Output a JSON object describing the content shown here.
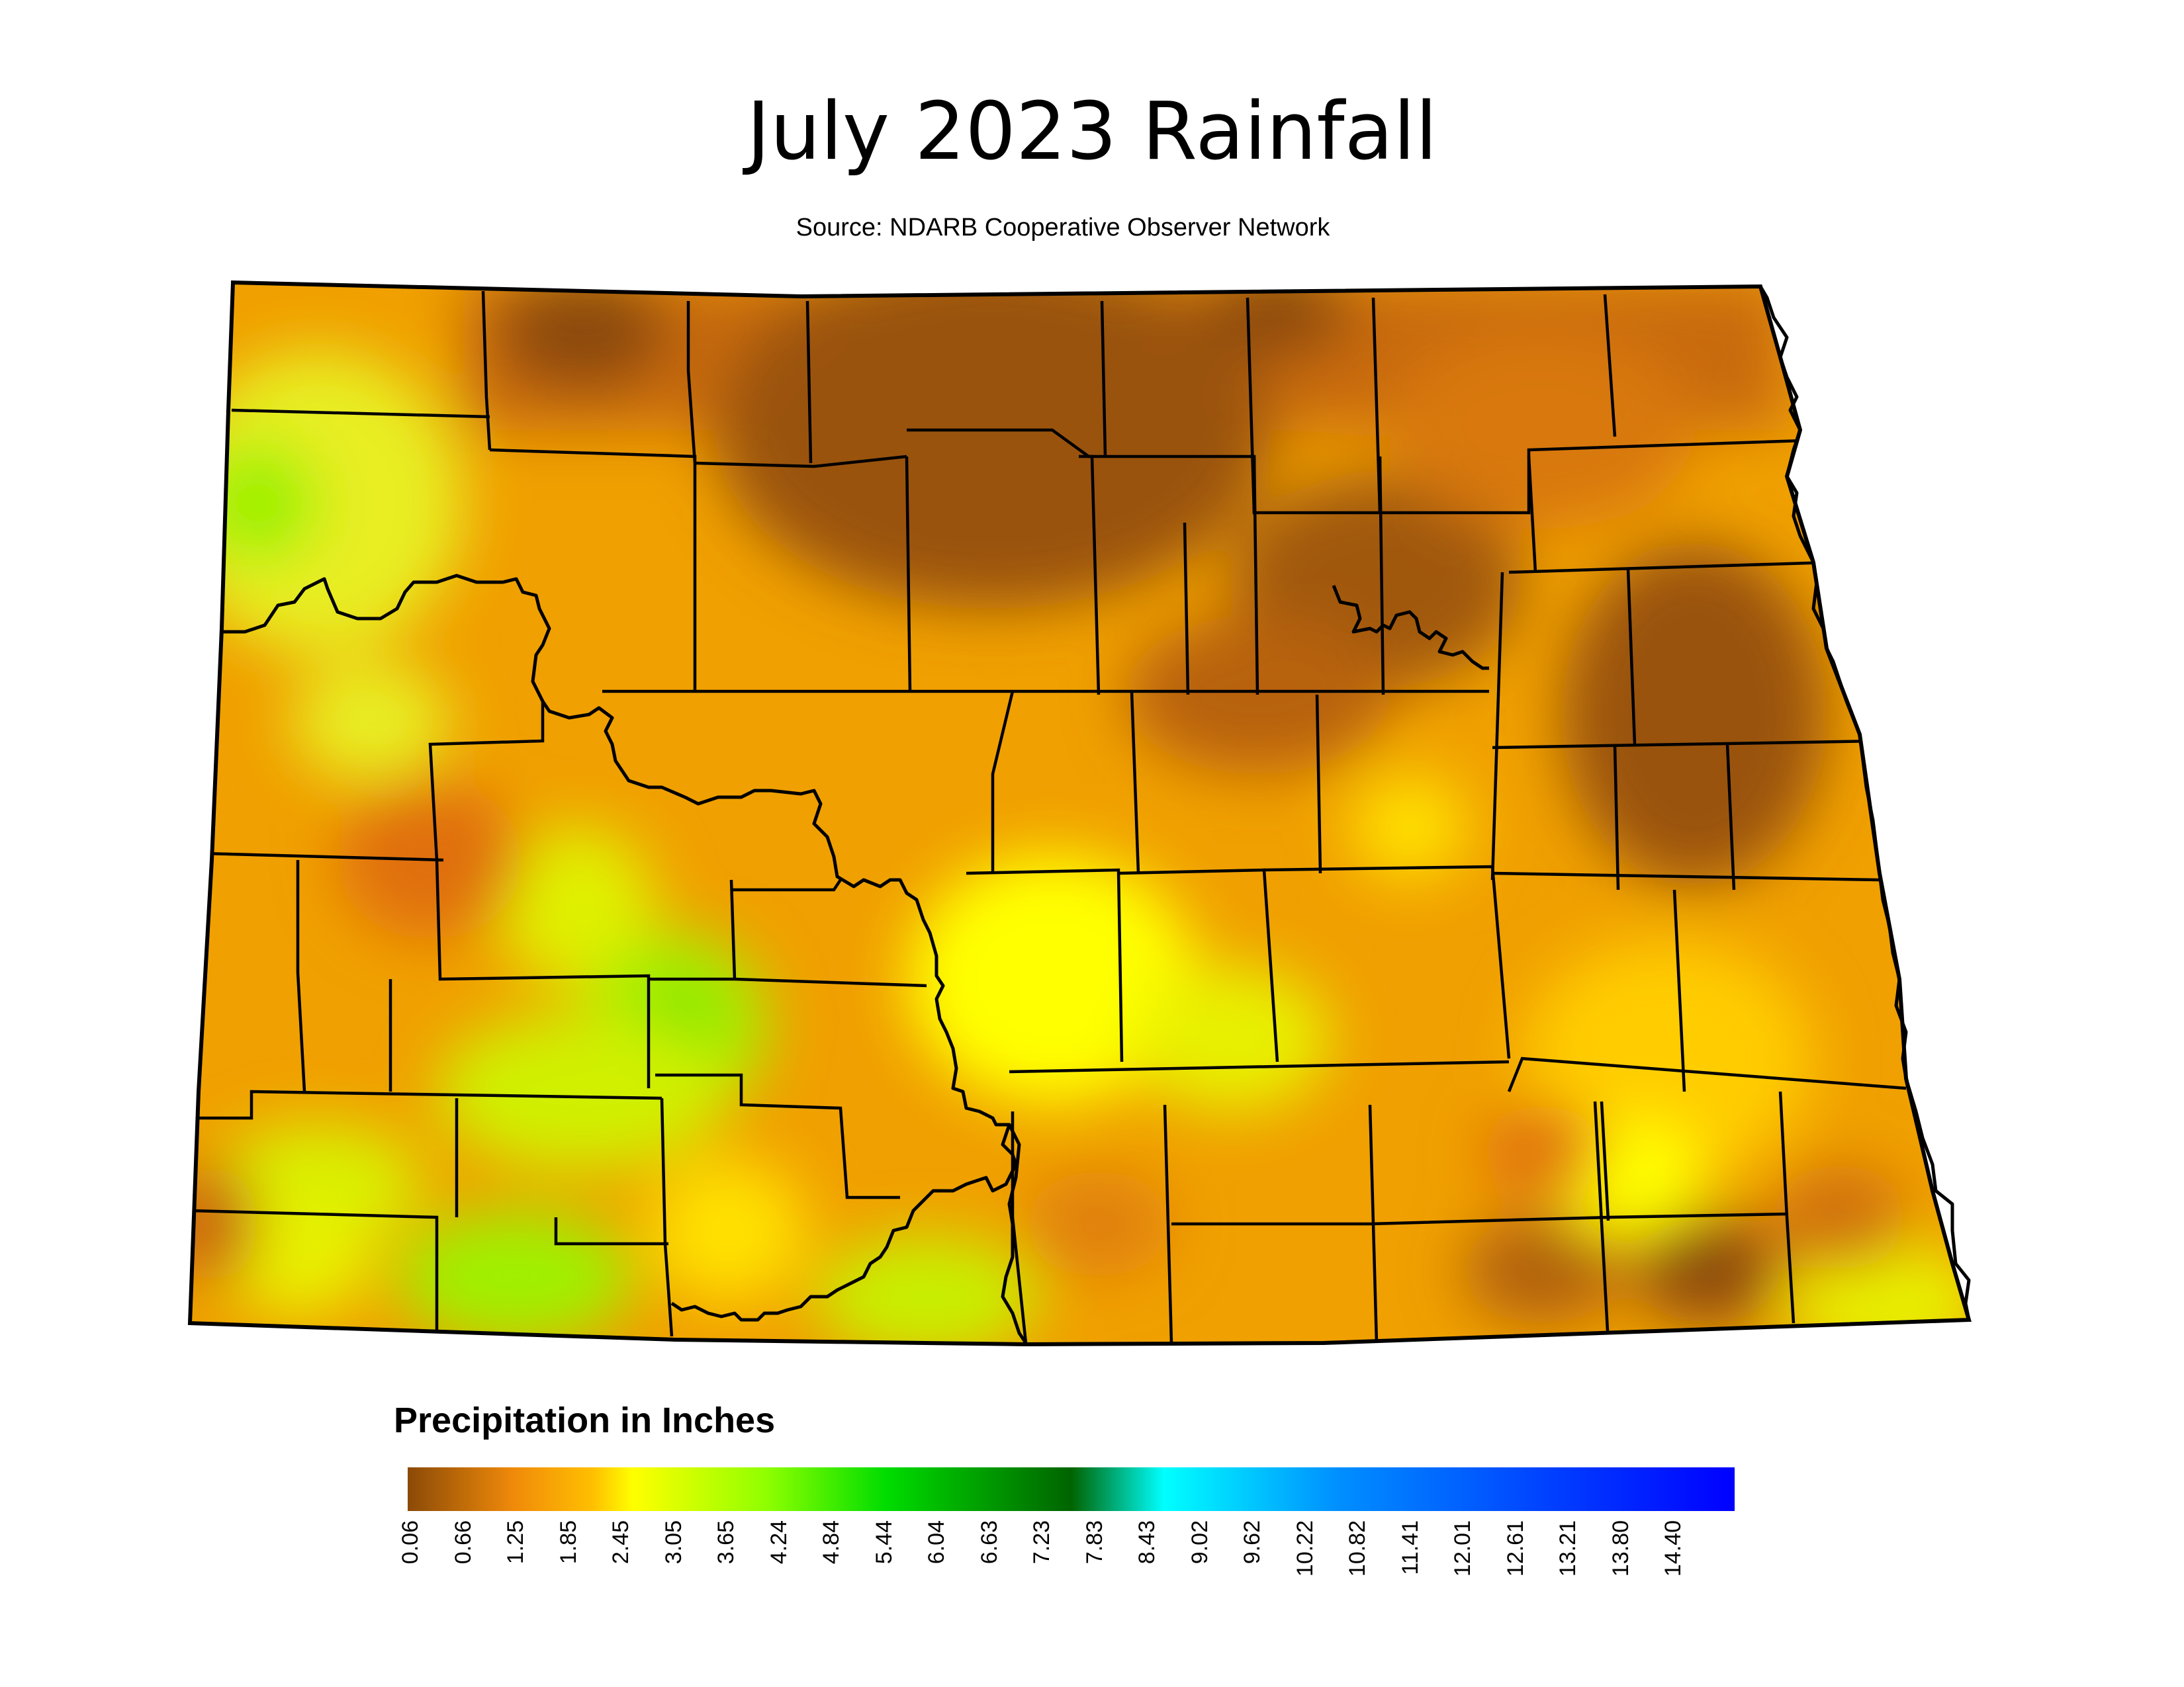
{
  "title": "July 2023 Rainfall",
  "source": "Source: NDARB Cooperative Observer Network",
  "legend": {
    "title": "Precipitation in Inches",
    "ticks": [
      "0.06",
      "0.66",
      "1.25",
      "1.85",
      "2.45",
      "3.05",
      "3.65",
      "4.24",
      "4.84",
      "5.44",
      "6.04",
      "6.63",
      "7.23",
      "7.83",
      "8.43",
      "9.02",
      "9.62",
      "10.22",
      "10.82",
      "11.41",
      "12.01",
      "12.61",
      "13.21",
      "13.80",
      "14.40"
    ],
    "colors": {
      "driest": "#8b4a07",
      "low": "#f08a0a",
      "mid_low": "#ffc000",
      "mid": "#ffff00",
      "mid_high": "#90ff00",
      "green": "#00dd00",
      "dark_green": "#006400",
      "cyan": "#00ffff",
      "light_blue": "#0090ff",
      "blue": "#0040ff",
      "wettest": "#0000ff"
    }
  }
}
